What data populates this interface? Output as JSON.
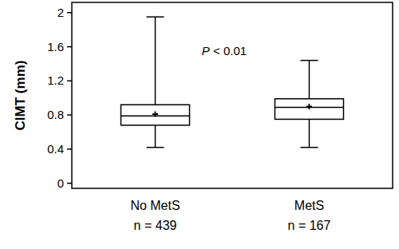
{
  "chart_data": {
    "type": "box",
    "annotation": "P < 0.01",
    "y_label": "CIMT (mm)",
    "categories": [
      "No MetS",
      "MetS"
    ],
    "sublabels": [
      "n = 439",
      "n = 167"
    ],
    "min": [
      0.42,
      0.42
    ],
    "q1": [
      0.68,
      0.75
    ],
    "median": [
      0.79,
      0.89
    ],
    "q3": [
      0.92,
      0.99
    ],
    "max": [
      1.95,
      1.44
    ],
    "mean": [
      0.81,
      0.9
    ],
    "color": "#000000",
    "marker": "plus",
    "ylim": [
      -0.06,
      2.12
    ],
    "yticks": [
      0,
      0.4,
      0.8,
      1.2,
      1.6,
      2
    ],
    "grid": false
  }
}
